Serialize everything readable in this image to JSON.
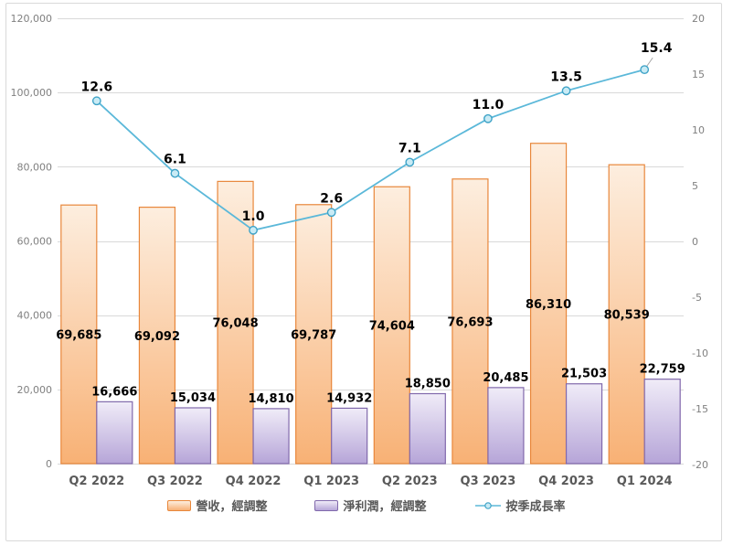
{
  "chart_data": {
    "type": "combo",
    "title": "",
    "categories": [
      "Q2 2022",
      "Q3 2022",
      "Q4 2022",
      "Q1 2023",
      "Q2 2023",
      "Q3 2023",
      "Q4 2023",
      "Q1 2024"
    ],
    "series": [
      {
        "name": "營收，經調整",
        "type": "bar",
        "axis": "left",
        "values": [
          69685,
          69092,
          76048,
          69787,
          74604,
          76693,
          86310,
          80539
        ],
        "labels": [
          "69,685",
          "69,092",
          "76,048",
          "69,787",
          "74,604",
          "76,693",
          "86,310",
          "80,539"
        ]
      },
      {
        "name": "淨利潤，經調整",
        "type": "bar",
        "axis": "left",
        "values": [
          16666,
          15034,
          14810,
          14932,
          18850,
          20485,
          21503,
          22759
        ],
        "labels": [
          "16,666",
          "15,034",
          "14,810",
          "14,932",
          "18,850",
          "20,485",
          "21,503",
          "22,759"
        ]
      },
      {
        "name": "按季成長率",
        "type": "line",
        "axis": "right",
        "values": [
          12.6,
          6.1,
          1.0,
          2.6,
          7.1,
          11.0,
          13.5,
          15.4
        ],
        "labels": [
          "12.6",
          "6.1",
          "1.0",
          "2.6",
          "7.1",
          "11.0",
          "13.5",
          "15.4"
        ]
      }
    ],
    "left_axis": {
      "min": 0,
      "max": 120000,
      "tick_labels": [
        "120,000",
        "100,000",
        "80,000",
        "60,000",
        "40,000",
        "20,000",
        "0"
      ],
      "tick_values": [
        120000,
        100000,
        80000,
        60000,
        40000,
        20000,
        0
      ]
    },
    "right_axis": {
      "min": -20,
      "max": 20,
      "tick_labels": [
        "20",
        "15",
        "10",
        "5",
        "0",
        "-5",
        "-10",
        "-15",
        "-20"
      ],
      "tick_values": [
        20,
        15,
        10,
        5,
        0,
        -5,
        -10,
        -15,
        -20
      ]
    },
    "grid": true,
    "legend_position": "bottom"
  },
  "colors": {
    "revenue_top": "#fdeedf",
    "revenue_bottom": "#f8b175",
    "revenue_border": "#e8873b",
    "profit_top": "#f0ecf8",
    "profit_bottom": "#b6a5d8",
    "profit_border": "#8169ac",
    "line": "#5bb8d9",
    "marker_fill": "#c9ebf5",
    "marker_border": "#3fa3c7",
    "grid": "#d9d9d9",
    "frame": "#d9d9d9",
    "axis_text": "#808080",
    "category_text": "#595959",
    "data_label": "#000000",
    "leader": "#a6a6a6"
  }
}
